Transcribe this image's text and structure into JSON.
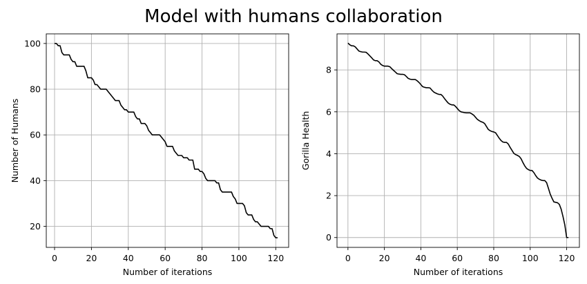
{
  "figure": {
    "title": "Model with humans collaboration"
  },
  "chart_data": [
    {
      "type": "line",
      "title": "",
      "xlabel": "Number of iterations",
      "ylabel": "Number of Humans",
      "xlim": [
        -4.5,
        127
      ],
      "ylim": [
        10.8,
        104.2
      ],
      "xticks": [
        0,
        20,
        40,
        60,
        80,
        100,
        120
      ],
      "yticks": [
        20,
        40,
        60,
        80,
        100
      ],
      "grid": true,
      "series": [
        {
          "color": "#000000",
          "x": [
            0,
            1,
            2,
            3,
            4,
            5,
            6,
            7,
            8,
            9,
            10,
            11,
            12,
            13,
            14,
            15,
            16,
            17,
            18,
            19,
            20,
            21,
            22,
            23,
            24,
            25,
            26,
            27,
            28,
            29,
            30,
            31,
            32,
            33,
            34,
            35,
            36,
            37,
            38,
            39,
            40,
            41,
            42,
            43,
            44,
            45,
            46,
            47,
            48,
            49,
            50,
            51,
            52,
            53,
            54,
            55,
            56,
            57,
            58,
            59,
            60,
            61,
            62,
            63,
            64,
            65,
            66,
            67,
            68,
            69,
            70,
            71,
            72,
            73,
            74,
            75,
            76,
            77,
            78,
            79,
            80,
            81,
            82,
            83,
            84,
            85,
            86,
            87,
            88,
            89,
            90,
            91,
            92,
            93,
            94,
            95,
            96,
            97,
            98,
            99,
            100,
            101,
            102,
            103,
            104,
            105,
            106,
            107,
            108,
            109,
            110,
            111,
            112,
            113,
            114,
            115,
            116,
            117,
            118,
            119,
            120,
            121
          ],
          "y": [
            100,
            100,
            99,
            99,
            96,
            95,
            95,
            95,
            95,
            93,
            92,
            92,
            90,
            90,
            90,
            90,
            90,
            88,
            85,
            85,
            85,
            84,
            82,
            82,
            81,
            80,
            80,
            80,
            80,
            79,
            78,
            77,
            76,
            75,
            75,
            75,
            73,
            72,
            71,
            71,
            70,
            70,
            70,
            70,
            68,
            67,
            67,
            65,
            65,
            65,
            64,
            62,
            61,
            60,
            60,
            60,
            60,
            60,
            59,
            58,
            57,
            55,
            55,
            55,
            55,
            53,
            52,
            51,
            51,
            51,
            50,
            50,
            50,
            49,
            49,
            49,
            45,
            45,
            45,
            44,
            44,
            43,
            41,
            40,
            40,
            40,
            40,
            40,
            39,
            39,
            36,
            35,
            35,
            35,
            35,
            35,
            35,
            33,
            32,
            30,
            30,
            30,
            30,
            29,
            26,
            25,
            25,
            25,
            23,
            22,
            22,
            21,
            20,
            20,
            20,
            20,
            20,
            19,
            19,
            16,
            15,
            15
          ]
        }
      ]
    },
    {
      "type": "line",
      "title": "",
      "xlabel": "Number of iterations",
      "ylabel": "Gorilla Health",
      "xlim": [
        -6,
        127
      ],
      "ylim": [
        -0.47,
        9.72
      ],
      "xticks": [
        0,
        20,
        40,
        60,
        80,
        100,
        120
      ],
      "yticks": [
        0,
        2,
        4,
        6,
        8
      ],
      "grid": true,
      "series": [
        {
          "color": "#000000",
          "x": [
            0,
            1,
            2,
            3,
            4,
            5,
            6,
            7,
            8,
            9,
            10,
            11,
            12,
            13,
            14,
            15,
            16,
            17,
            18,
            19,
            20,
            21,
            22,
            23,
            24,
            25,
            26,
            27,
            28,
            29,
            30,
            31,
            32,
            33,
            34,
            35,
            36,
            37,
            38,
            39,
            40,
            41,
            42,
            43,
            44,
            45,
            46,
            47,
            48,
            49,
            50,
            51,
            52,
            53,
            54,
            55,
            56,
            57,
            58,
            59,
            60,
            61,
            62,
            63,
            64,
            65,
            66,
            67,
            68,
            69,
            70,
            71,
            72,
            73,
            74,
            75,
            76,
            77,
            78,
            79,
            80,
            81,
            82,
            83,
            84,
            85,
            86,
            87,
            88,
            89,
            90,
            91,
            92,
            93,
            94,
            95,
            96,
            97,
            98,
            99,
            100,
            101,
            102,
            103,
            104,
            105,
            106,
            107,
            108,
            109,
            110,
            111,
            112,
            113,
            114,
            115,
            116,
            117,
            118,
            119,
            120,
            121
          ],
          "y": [
            9.28,
            9.2,
            9.15,
            9.15,
            9.1,
            9.0,
            8.9,
            8.87,
            8.85,
            8.85,
            8.84,
            8.76,
            8.67,
            8.58,
            8.48,
            8.44,
            8.44,
            8.38,
            8.27,
            8.21,
            8.18,
            8.18,
            8.18,
            8.15,
            8.06,
            7.98,
            7.9,
            7.82,
            7.8,
            7.79,
            7.79,
            7.77,
            7.69,
            7.6,
            7.56,
            7.54,
            7.54,
            7.54,
            7.48,
            7.4,
            7.3,
            7.2,
            7.17,
            7.15,
            7.15,
            7.14,
            7.04,
            6.95,
            6.9,
            6.86,
            6.83,
            6.83,
            6.75,
            6.63,
            6.52,
            6.42,
            6.36,
            6.33,
            6.33,
            6.26,
            6.16,
            6.06,
            6.0,
            5.98,
            5.96,
            5.95,
            5.95,
            5.95,
            5.9,
            5.84,
            5.74,
            5.64,
            5.58,
            5.53,
            5.5,
            5.44,
            5.3,
            5.16,
            5.1,
            5.06,
            5.04,
            5.0,
            4.87,
            4.74,
            4.63,
            4.56,
            4.54,
            4.54,
            4.46,
            4.3,
            4.16,
            4.02,
            3.96,
            3.92,
            3.87,
            3.76,
            3.58,
            3.42,
            3.3,
            3.24,
            3.2,
            3.2,
            3.1,
            2.96,
            2.84,
            2.78,
            2.74,
            2.72,
            2.72,
            2.62,
            2.35,
            2.07,
            1.87,
            1.7,
            1.68,
            1.66,
            1.58,
            1.35,
            1.0,
            0.6,
            0.0,
            0.0
          ]
        }
      ]
    }
  ]
}
